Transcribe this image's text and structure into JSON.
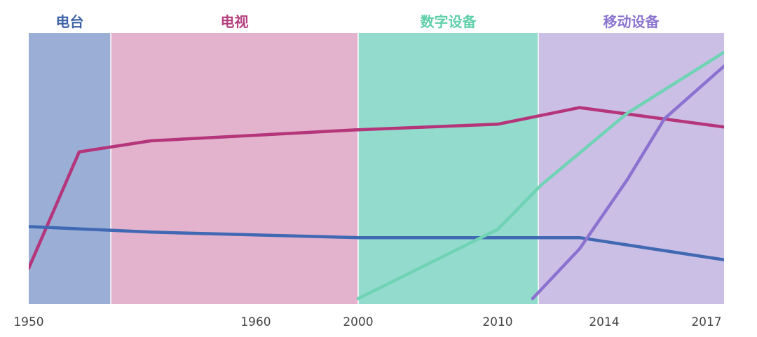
{
  "chart_data": {
    "type": "line",
    "title": "",
    "xlabel": "",
    "ylabel": "",
    "x_ticks": [
      "1950",
      "1960",
      "2000",
      "2010",
      "2014",
      "2017"
    ],
    "eras": [
      {
        "label": "电台",
        "color": "#9aaed6",
        "text_color": "#3f63a8"
      },
      {
        "label": "电视",
        "color": "#e3b3ce",
        "text_color": "#b3407e"
      },
      {
        "label": "数字设备",
        "color": "#93dbcd",
        "text_color": "#5fcfa9"
      },
      {
        "label": "移动设备",
        "color": "#cbbfe6",
        "text_color": "#8b74d0"
      }
    ],
    "series": [
      {
        "color": "#b5357a",
        "points": [
          [
            1950,
            10
          ],
          [
            1955,
            52
          ],
          [
            1960,
            56
          ],
          [
            2000,
            60
          ],
          [
            2010,
            62
          ],
          [
            2013,
            68
          ],
          [
            2017,
            61
          ]
        ]
      },
      {
        "color": "#4168b3",
        "points": [
          [
            1950,
            25
          ],
          [
            1960,
            23
          ],
          [
            2000,
            21
          ],
          [
            2010,
            21
          ],
          [
            2013,
            21
          ],
          [
            2017,
            13
          ]
        ]
      },
      {
        "color": "#6fd3b4",
        "points": [
          [
            2000,
            -1
          ],
          [
            2010,
            24
          ],
          [
            2012,
            40
          ],
          [
            2014,
            66
          ],
          [
            2017,
            88
          ]
        ]
      },
      {
        "color": "#8c72d0",
        "points": [
          [
            2011,
            -1
          ],
          [
            2013,
            17
          ],
          [
            2014,
            42
          ],
          [
            2016,
            64
          ],
          [
            2017,
            83
          ]
        ]
      }
    ],
    "ylim": [
      -3,
      95
    ],
    "grid": false,
    "legend": "none"
  }
}
